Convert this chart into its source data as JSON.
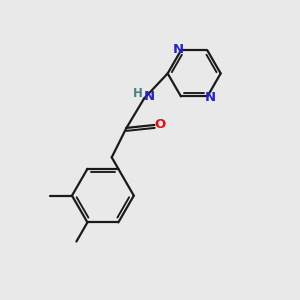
{
  "background_color": "#e9e9e9",
  "bond_color": "#1a1a1a",
  "nitrogen_color": "#2424cc",
  "oxygen_color": "#dd1111",
  "nh_color": "#4a8080",
  "line_width": 1.6,
  "figsize": [
    3.0,
    3.0
  ],
  "dpi": 100,
  "xlim": [
    0,
    10
  ],
  "ylim": [
    0,
    10
  ]
}
